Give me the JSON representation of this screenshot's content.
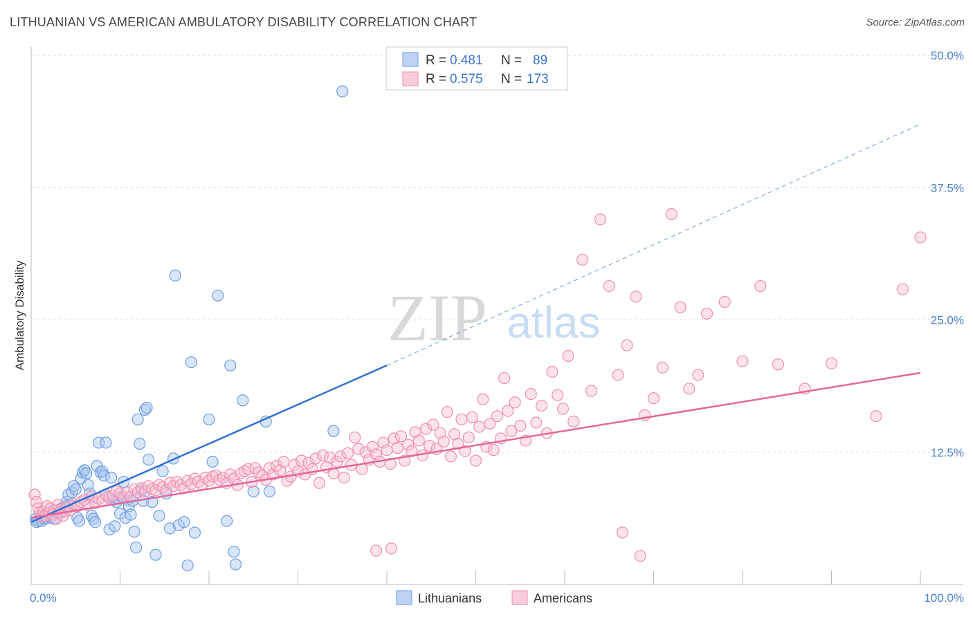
{
  "title": "LITHUANIAN VS AMERICAN AMBULATORY DISABILITY CORRELATION CHART",
  "source": "Source: ZipAtlas.com",
  "watermark": {
    "zip": "ZIP",
    "atlas": "atlas"
  },
  "legend": {
    "r_label": "R =",
    "n_label": "N =",
    "rows": [
      {
        "series": "Lithuanians",
        "r": "0.481",
        "n": "89",
        "color": "#6d9ee6"
      },
      {
        "series": "Americans",
        "r": "0.575",
        "n": "173",
        "color": "#f08fb0"
      }
    ]
  },
  "colors": {
    "blue_fill": "#a9c6ee",
    "blue_stroke": "#6d9ee6",
    "blue_line": "#2e6fcf",
    "pink_fill": "#f6bfd2",
    "pink_stroke": "#ee8fb0",
    "pink_line": "#e4679a",
    "grid": "#dddddd",
    "tick_text": "#4a7fd0"
  },
  "chart_data": {
    "type": "scatter",
    "title": "LITHUANIAN VS AMERICAN AMBULATORY DISABILITY CORRELATION CHART",
    "xlabel": "",
    "ylabel": "Ambulatory Disability",
    "xlim": [
      0,
      100
    ],
    "ylim": [
      0,
      50
    ],
    "x_tick_labels": [
      "0.0%",
      "100.0%"
    ],
    "y_ticks": [
      12.5,
      25.0,
      37.5,
      50.0
    ],
    "y_tick_labels": [
      "12.5%",
      "25.0%",
      "37.5%",
      "50.0%"
    ],
    "grid": true,
    "legend_position": "top-center",
    "series": [
      {
        "name": "Lithuanians",
        "trend": {
          "x0": 0,
          "y0": 5.9,
          "x1": 40,
          "y1": 20.7,
          "dashed_to_x": 100,
          "dashed_to_y": 43.5
        },
        "points": [
          [
            0.5,
            6.2
          ],
          [
            0.6,
            5.9
          ],
          [
            0.8,
            6.0
          ],
          [
            1.0,
            6.5
          ],
          [
            1.2,
            6.0
          ],
          [
            1.5,
            6.2
          ],
          [
            1.7,
            6.3
          ],
          [
            2.0,
            6.5
          ],
          [
            2.2,
            6.3
          ],
          [
            2.4,
            6.6
          ],
          [
            2.6,
            6.2
          ],
          [
            2.8,
            6.8
          ],
          [
            3.0,
            7.0
          ],
          [
            3.2,
            6.7
          ],
          [
            3.4,
            7.2
          ],
          [
            3.6,
            7.0
          ],
          [
            3.8,
            7.4
          ],
          [
            4.0,
            7.8
          ],
          [
            4.2,
            8.5
          ],
          [
            4.4,
            7.5
          ],
          [
            4.6,
            8.7
          ],
          [
            4.8,
            9.3
          ],
          [
            5.0,
            9.0
          ],
          [
            5.2,
            6.3
          ],
          [
            5.4,
            6.0
          ],
          [
            5.6,
            10.0
          ],
          [
            5.8,
            10.6
          ],
          [
            6.0,
            10.8
          ],
          [
            6.2,
            10.5
          ],
          [
            6.4,
            9.4
          ],
          [
            6.6,
            8.6
          ],
          [
            6.8,
            6.5
          ],
          [
            7.0,
            6.2
          ],
          [
            7.2,
            5.9
          ],
          [
            7.4,
            11.2
          ],
          [
            7.6,
            13.4
          ],
          [
            7.8,
            10.6
          ],
          [
            8.0,
            10.7
          ],
          [
            8.2,
            10.3
          ],
          [
            8.4,
            13.4
          ],
          [
            8.6,
            8.3
          ],
          [
            8.8,
            5.2
          ],
          [
            9.0,
            10.1
          ],
          [
            9.2,
            8.0
          ],
          [
            9.4,
            5.5
          ],
          [
            9.6,
            7.8
          ],
          [
            9.8,
            8.1
          ],
          [
            10.0,
            6.7
          ],
          [
            10.2,
            8.3
          ],
          [
            10.4,
            9.7
          ],
          [
            10.6,
            6.3
          ],
          [
            10.8,
            8.0
          ],
          [
            11.0,
            7.4
          ],
          [
            11.2,
            6.6
          ],
          [
            11.4,
            7.9
          ],
          [
            11.6,
            5.0
          ],
          [
            11.8,
            3.5
          ],
          [
            12.0,
            15.6
          ],
          [
            12.2,
            13.3
          ],
          [
            12.4,
            8.9
          ],
          [
            12.6,
            7.9
          ],
          [
            12.8,
            16.5
          ],
          [
            13.0,
            16.7
          ],
          [
            13.2,
            11.8
          ],
          [
            13.6,
            7.8
          ],
          [
            14.0,
            2.8
          ],
          [
            14.4,
            6.5
          ],
          [
            14.8,
            10.7
          ],
          [
            15.2,
            8.6
          ],
          [
            15.6,
            5.3
          ],
          [
            16.0,
            11.9
          ],
          [
            16.2,
            29.2
          ],
          [
            16.6,
            5.6
          ],
          [
            17.2,
            5.9
          ],
          [
            17.6,
            1.8
          ],
          [
            18.0,
            21.0
          ],
          [
            18.4,
            4.9
          ],
          [
            20.0,
            15.6
          ],
          [
            20.4,
            11.6
          ],
          [
            21.0,
            27.3
          ],
          [
            22.0,
            6.0
          ],
          [
            22.4,
            20.7
          ],
          [
            22.8,
            3.1
          ],
          [
            23.0,
            1.9
          ],
          [
            23.8,
            17.4
          ],
          [
            25.0,
            8.8
          ],
          [
            26.4,
            15.4
          ],
          [
            26.8,
            8.8
          ],
          [
            34.0,
            14.5
          ],
          [
            35.0,
            46.6
          ]
        ]
      },
      {
        "name": "Americans",
        "trend": {
          "x0": 0,
          "y0": 6.3,
          "x1": 100,
          "y1": 20.0
        },
        "points": [
          [
            0.4,
            8.5
          ],
          [
            0.6,
            7.8
          ],
          [
            0.8,
            7.2
          ],
          [
            1.0,
            6.8
          ],
          [
            1.2,
            6.4
          ],
          [
            1.4,
            6.9
          ],
          [
            1.6,
            6.5
          ],
          [
            1.8,
            7.4
          ],
          [
            2.0,
            6.8
          ],
          [
            2.2,
            7.2
          ],
          [
            2.4,
            6.6
          ],
          [
            2.6,
            7.0
          ],
          [
            2.8,
            6.2
          ],
          [
            3.0,
            7.5
          ],
          [
            3.2,
            6.8
          ],
          [
            3.4,
            7.1
          ],
          [
            3.6,
            6.5
          ],
          [
            3.8,
            6.9
          ],
          [
            4.0,
            7.3
          ],
          [
            4.4,
            7.0
          ],
          [
            4.8,
            7.6
          ],
          [
            5.2,
            7.4
          ],
          [
            5.6,
            7.8
          ],
          [
            6.0,
            8.0
          ],
          [
            6.4,
            7.5
          ],
          [
            6.8,
            8.3
          ],
          [
            7.2,
            7.7
          ],
          [
            7.6,
            8.1
          ],
          [
            8.0,
            7.9
          ],
          [
            8.4,
            8.5
          ],
          [
            8.8,
            8.2
          ],
          [
            9.2,
            8.4
          ],
          [
            9.6,
            8.8
          ],
          [
            10.0,
            8.6
          ],
          [
            10.4,
            8.2
          ],
          [
            10.8,
            8.7
          ],
          [
            11.2,
            8.3
          ],
          [
            11.6,
            9.0
          ],
          [
            12.0,
            8.7
          ],
          [
            12.4,
            9.1
          ],
          [
            12.8,
            8.8
          ],
          [
            13.2,
            9.3
          ],
          [
            13.6,
            9.0
          ],
          [
            14.0,
            8.9
          ],
          [
            14.4,
            9.4
          ],
          [
            14.8,
            9.2
          ],
          [
            15.2,
            8.9
          ],
          [
            15.6,
            9.6
          ],
          [
            16.0,
            9.3
          ],
          [
            16.4,
            9.7
          ],
          [
            16.8,
            9.4
          ],
          [
            17.2,
            9.1
          ],
          [
            17.6,
            9.8
          ],
          [
            18.0,
            9.5
          ],
          [
            18.4,
            10.0
          ],
          [
            18.8,
            9.7
          ],
          [
            19.2,
            9.4
          ],
          [
            19.6,
            10.1
          ],
          [
            20.0,
            9.8
          ],
          [
            20.4,
            10.2
          ],
          [
            20.8,
            10.3
          ],
          [
            21.2,
            9.9
          ],
          [
            21.6,
            10.1
          ],
          [
            22.0,
            9.6
          ],
          [
            22.4,
            10.4
          ],
          [
            22.8,
            10.0
          ],
          [
            23.2,
            9.4
          ],
          [
            23.6,
            10.5
          ],
          [
            24.0,
            10.7
          ],
          [
            24.4,
            10.9
          ],
          [
            24.8,
            9.7
          ],
          [
            25.2,
            11.0
          ],
          [
            25.6,
            10.6
          ],
          [
            26.0,
            10.3
          ],
          [
            26.4,
            9.9
          ],
          [
            26.8,
            11.0
          ],
          [
            27.2,
            10.4
          ],
          [
            27.6,
            11.2
          ],
          [
            28.0,
            10.8
          ],
          [
            28.4,
            11.6
          ],
          [
            28.8,
            9.8
          ],
          [
            29.2,
            10.2
          ],
          [
            29.6,
            11.3
          ],
          [
            30.0,
            10.7
          ],
          [
            30.4,
            11.7
          ],
          [
            30.8,
            10.4
          ],
          [
            31.2,
            11.5
          ],
          [
            31.6,
            10.9
          ],
          [
            32.0,
            11.9
          ],
          [
            32.4,
            9.6
          ],
          [
            32.8,
            12.2
          ],
          [
            33.2,
            11.1
          ],
          [
            33.6,
            12.0
          ],
          [
            34.0,
            10.5
          ],
          [
            34.4,
            11.6
          ],
          [
            34.8,
            12.1
          ],
          [
            35.2,
            10.1
          ],
          [
            35.6,
            12.4
          ],
          [
            36.0,
            11.3
          ],
          [
            36.4,
            13.9
          ],
          [
            36.8,
            12.8
          ],
          [
            37.2,
            10.9
          ],
          [
            37.6,
            12.5
          ],
          [
            38.0,
            11.8
          ],
          [
            38.4,
            13.0
          ],
          [
            38.8,
            12.3
          ],
          [
            39.2,
            11.6
          ],
          [
            39.6,
            13.4
          ],
          [
            40.0,
            12.7
          ],
          [
            40.4,
            11.4
          ],
          [
            40.8,
            13.8
          ],
          [
            41.2,
            12.9
          ],
          [
            41.6,
            14.0
          ],
          [
            42.0,
            11.7
          ],
          [
            42.4,
            13.2
          ],
          [
            42.8,
            12.6
          ],
          [
            43.2,
            14.4
          ],
          [
            43.6,
            13.6
          ],
          [
            44.0,
            12.2
          ],
          [
            44.4,
            14.7
          ],
          [
            44.8,
            13.1
          ],
          [
            45.2,
            15.1
          ],
          [
            45.6,
            12.8
          ],
          [
            46.0,
            14.3
          ],
          [
            46.4,
            13.5
          ],
          [
            46.8,
            16.3
          ],
          [
            47.2,
            12.1
          ],
          [
            47.6,
            14.2
          ],
          [
            48.0,
            13.3
          ],
          [
            48.4,
            15.6
          ],
          [
            48.8,
            12.6
          ],
          [
            49.2,
            13.9
          ],
          [
            49.6,
            15.8
          ],
          [
            50.0,
            11.7
          ],
          [
            50.4,
            14.9
          ],
          [
            50.8,
            17.5
          ],
          [
            51.2,
            13.0
          ],
          [
            51.6,
            15.2
          ],
          [
            52.0,
            12.7
          ],
          [
            52.4,
            15.9
          ],
          [
            52.8,
            13.8
          ],
          [
            53.2,
            19.5
          ],
          [
            53.6,
            16.4
          ],
          [
            54.0,
            14.5
          ],
          [
            54.4,
            17.2
          ],
          [
            55.0,
            15.0
          ],
          [
            55.6,
            13.6
          ],
          [
            56.2,
            18.0
          ],
          [
            56.8,
            15.3
          ],
          [
            57.4,
            16.9
          ],
          [
            58.0,
            14.3
          ],
          [
            58.6,
            20.1
          ],
          [
            59.2,
            17.9
          ],
          [
            59.8,
            16.6
          ],
          [
            60.4,
            21.6
          ],
          [
            61.0,
            15.4
          ],
          [
            62.0,
            30.7
          ],
          [
            63.0,
            18.3
          ],
          [
            64.0,
            34.5
          ],
          [
            65.0,
            28.2
          ],
          [
            66.0,
            19.8
          ],
          [
            67.0,
            22.6
          ],
          [
            68.0,
            27.2
          ],
          [
            69.0,
            16.0
          ],
          [
            70.0,
            17.6
          ],
          [
            71.0,
            20.5
          ],
          [
            72.0,
            35.0
          ],
          [
            73.0,
            26.2
          ],
          [
            74.0,
            18.5
          ],
          [
            75.0,
            19.8
          ],
          [
            76.0,
            25.6
          ],
          [
            78.0,
            26.7
          ],
          [
            80.0,
            21.1
          ],
          [
            82.0,
            28.2
          ],
          [
            84.0,
            20.8
          ],
          [
            87.0,
            18.5
          ],
          [
            90.0,
            20.9
          ],
          [
            95.0,
            15.9
          ],
          [
            98.0,
            27.9
          ],
          [
            100.0,
            32.8
          ],
          [
            38.8,
            3.2
          ],
          [
            40.5,
            3.4
          ],
          [
            66.5,
            4.9
          ],
          [
            68.5,
            2.7
          ]
        ]
      }
    ]
  }
}
